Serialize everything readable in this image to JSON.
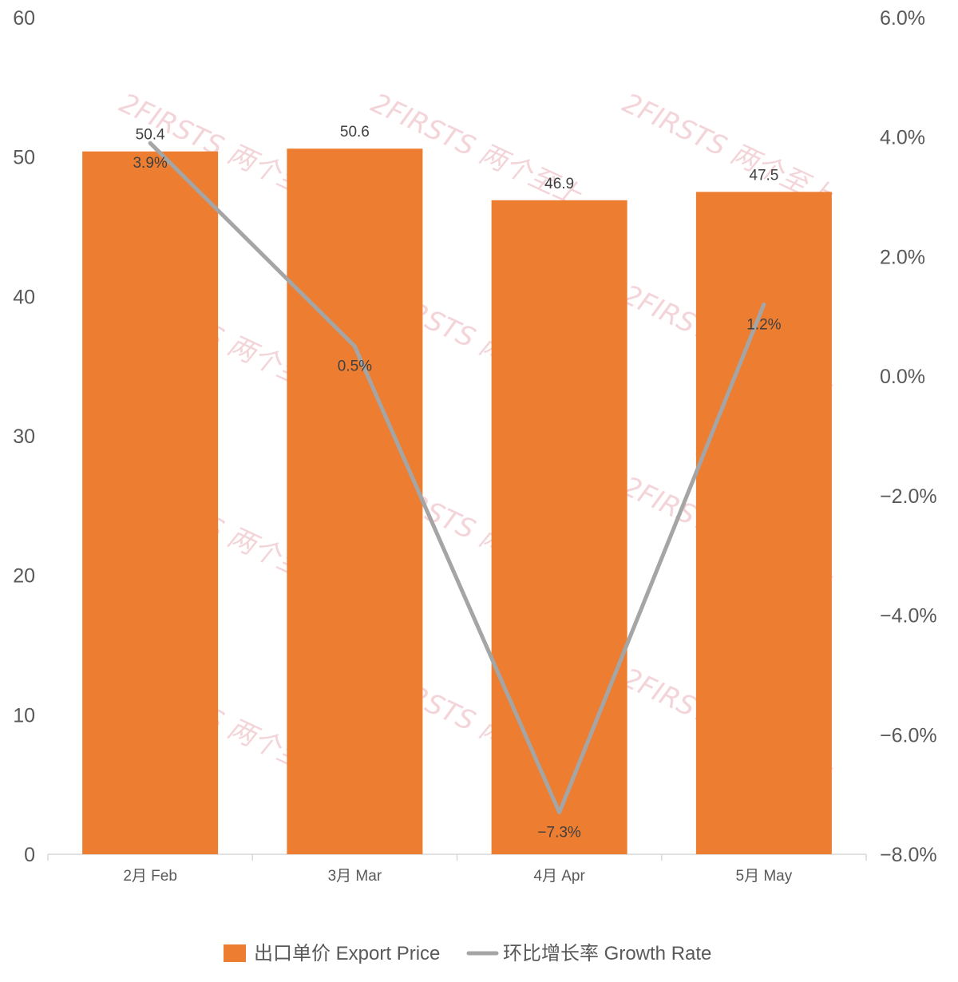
{
  "chart_data": {
    "type": "bar",
    "categories": [
      "2月 Feb",
      "3月 Mar",
      "4月 Apr",
      "5月 May"
    ],
    "series": [
      {
        "name": "出口单价 Export Price",
        "type": "bar",
        "axis": "left",
        "color": "#ED7D31",
        "values": [
          50.4,
          50.6,
          46.9,
          47.5
        ],
        "labels": [
          "50.4",
          "50.6",
          "46.9",
          "47.5"
        ]
      },
      {
        "name": "环比增长率 Growth Rate",
        "type": "line",
        "axis": "right",
        "color": "#A5A5A5",
        "values": [
          3.9,
          0.5,
          -7.3,
          1.2
        ],
        "labels": [
          "3.9%",
          "0.5%",
          "−7.3%",
          "1.2%"
        ]
      }
    ],
    "y_left": {
      "ylim": [
        0,
        60
      ],
      "ticks": [
        0,
        10,
        20,
        30,
        40,
        50,
        60
      ],
      "tick_labels": [
        "0",
        "10",
        "20",
        "30",
        "40",
        "50",
        "60"
      ]
    },
    "y_right": {
      "ylim": [
        -8,
        6
      ],
      "ticks": [
        -8,
        -6,
        -4,
        -2,
        0,
        2,
        4,
        6
      ],
      "tick_labels": [
        "−8.0%",
        "−6.0%",
        "−4.0%",
        "−2.0%",
        "0.0%",
        "2.0%",
        "4.0%",
        "6.0%"
      ]
    },
    "legend": {
      "position": "bottom",
      "items": [
        "出口单价 Export Price",
        "环比增长率 Growth Rate"
      ]
    },
    "grid": false,
    "watermark": "2FIRSTS 两个至上"
  }
}
